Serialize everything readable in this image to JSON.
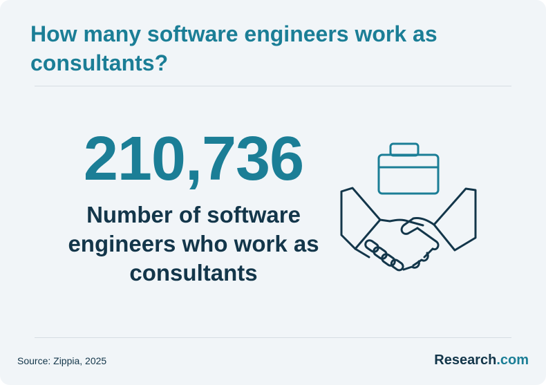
{
  "title": "How many software engineers work as consultants?",
  "stat": {
    "value": "210,736",
    "description": "Number of software engineers who work as consultants"
  },
  "footer": {
    "source": "Source: Zippia, 2025",
    "brand_name": "Research",
    "brand_suffix": ".com"
  },
  "icons": {
    "main": "briefcase-handshake-icon"
  },
  "colors": {
    "accent": "#1b7e96",
    "text_dark": "#13364a",
    "background": "#f1f5f8"
  }
}
